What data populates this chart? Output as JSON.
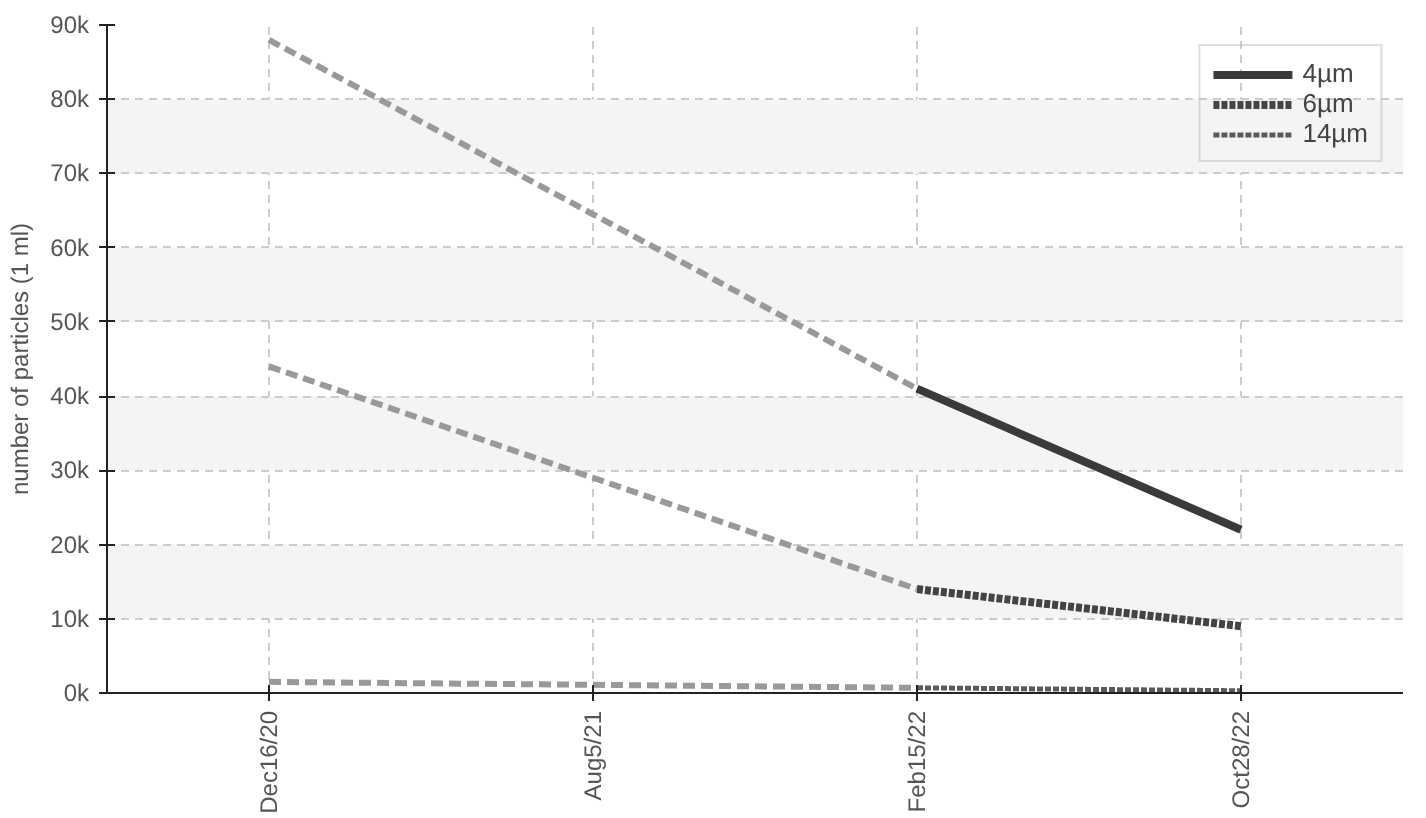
{
  "chart_data": {
    "type": "line",
    "ylabel": "number of particles (1 ml)",
    "categories": [
      "Dec16/20",
      "Aug5/21",
      "Feb15/22",
      "Oct28/22"
    ],
    "series": [
      {
        "color": "#999999",
        "line_style": "dashed",
        "values": [
          88000,
          64500,
          41000,
          null
        ]
      },
      {
        "color": "#999999",
        "line_style": "dashed",
        "values": [
          44000,
          29000,
          14000,
          null
        ]
      },
      {
        "color": "#999999",
        "line_style": "dashed",
        "values": [
          1500,
          1100,
          700,
          null
        ]
      },
      {
        "name": "4µm",
        "color": "#3a3a3a",
        "line_style": "solid",
        "values": [
          null,
          null,
          41000,
          22000
        ]
      },
      {
        "name": "6µm",
        "color": "#444444",
        "line_style": "dotted",
        "values": [
          null,
          null,
          14000,
          9000
        ]
      },
      {
        "name": "14µm",
        "color": "#5a5a5a",
        "line_style": "dotted",
        "values": [
          null,
          null,
          700,
          300
        ]
      }
    ],
    "ylim": [
      0,
      90000
    ],
    "yticks": [
      {
        "value": 0,
        "label": "0k"
      },
      {
        "value": 10000,
        "label": "10k"
      },
      {
        "value": 20000,
        "label": "20k"
      },
      {
        "value": 30000,
        "label": "30k"
      },
      {
        "value": 40000,
        "label": "40k"
      },
      {
        "value": 50000,
        "label": "50k"
      },
      {
        "value": 60000,
        "label": "60k"
      },
      {
        "value": 70000,
        "label": "70k"
      },
      {
        "value": 80000,
        "label": "80k"
      },
      {
        "value": 90000,
        "label": "90k"
      }
    ],
    "grid": true,
    "legend": "top right"
  }
}
